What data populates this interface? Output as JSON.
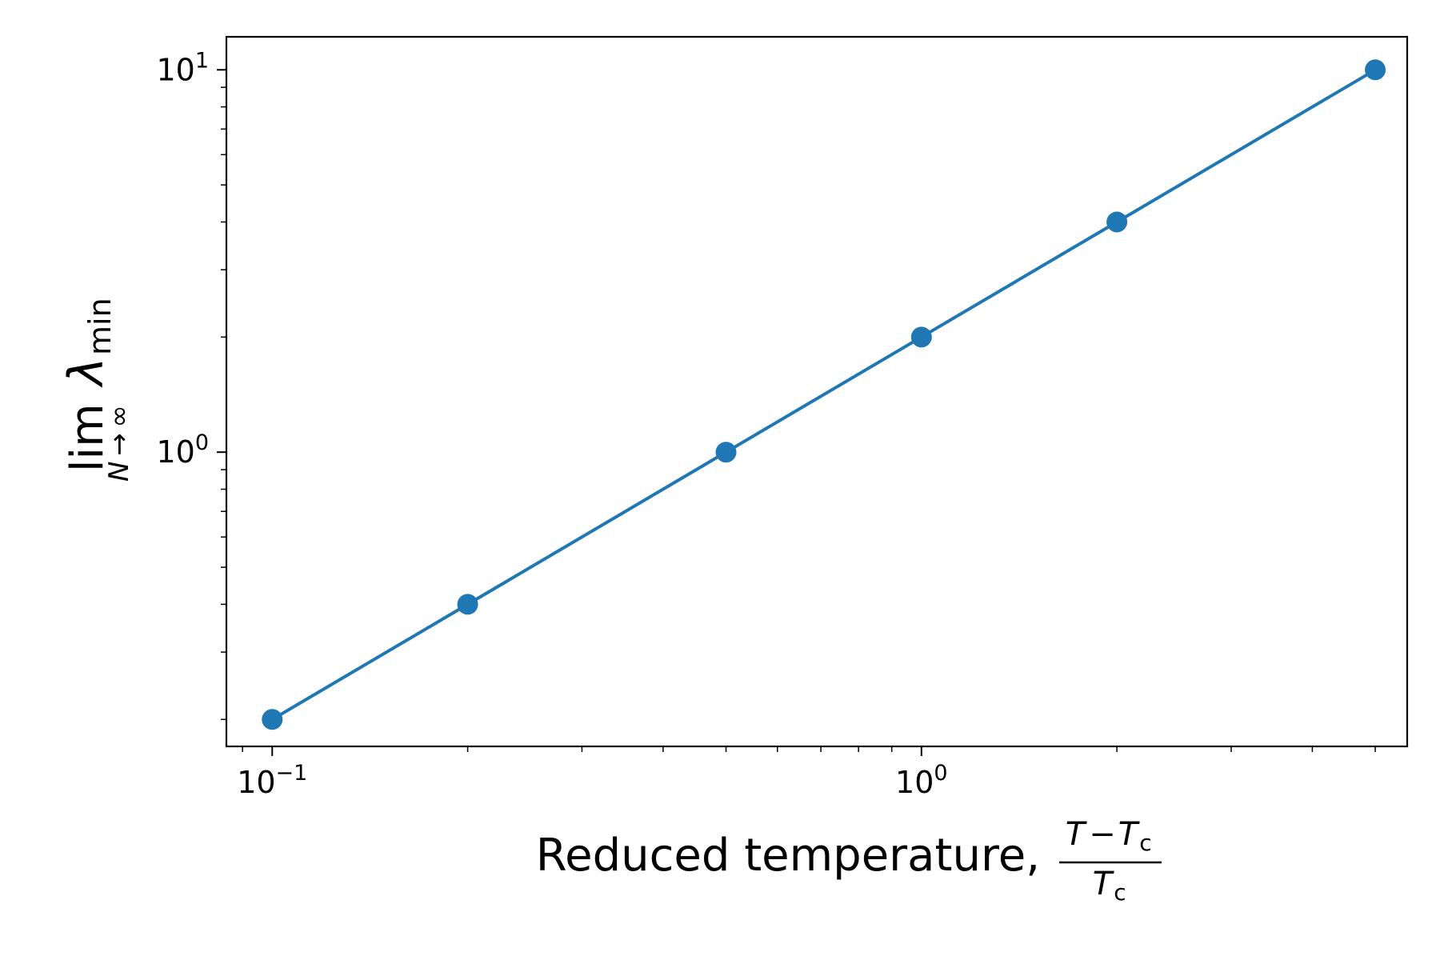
{
  "chart_data": {
    "type": "line",
    "xscale": "log",
    "yscale": "log",
    "x": [
      0.1,
      0.2,
      0.5,
      1.0,
      2.0,
      5.0
    ],
    "series": [
      {
        "values": [
          0.2,
          0.4,
          1.0,
          2.0,
          4.0,
          10.0
        ],
        "color": "#1f77b4",
        "marker": "circle"
      }
    ],
    "xlim": [
      0.085,
      5.6
    ],
    "ylim": [
      0.17,
      12.2
    ],
    "xticks": [
      {
        "value": 0.1,
        "base": "10",
        "exp": "−1"
      },
      {
        "value": 1.0,
        "base": "10",
        "exp": "0"
      }
    ],
    "yticks": [
      {
        "value": 1.0,
        "base": "10",
        "exp": "0"
      },
      {
        "value": 10.0,
        "base": "10",
        "exp": "1"
      }
    ],
    "xlabel": {
      "text": "Reduced temperature,",
      "frac_numerator": {
        "t1": "T",
        "op": "−",
        "t2": "T",
        "sub": "c"
      },
      "frac_denominator": {
        "t": "T",
        "sub": "c"
      }
    },
    "ylabel": {
      "lim": "lim",
      "lim_sub": "N → ∞",
      "symbol": "λ",
      "symbol_sub": "min"
    },
    "grid": false,
    "legend": "none"
  }
}
